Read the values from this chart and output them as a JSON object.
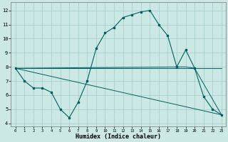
{
  "xlabel": "Humidex (Indice chaleur)",
  "background_color": "#cce8e4",
  "grid_color": "#aacfca",
  "line_color": "#006060",
  "xlim": [
    -0.5,
    23.5
  ],
  "ylim": [
    3.8,
    12.6
  ],
  "yticks": [
    4,
    5,
    6,
    7,
    8,
    9,
    10,
    11,
    12
  ],
  "xticks": [
    0,
    1,
    2,
    3,
    4,
    5,
    6,
    7,
    8,
    9,
    10,
    11,
    12,
    13,
    14,
    15,
    16,
    17,
    18,
    19,
    20,
    21,
    22,
    23
  ],
  "curve_x": [
    0,
    1,
    2,
    3,
    4,
    5,
    6,
    7,
    8,
    9,
    10,
    11,
    12,
    13,
    14,
    15,
    16,
    17,
    18,
    19,
    20,
    21,
    22,
    23
  ],
  "curve_y": [
    7.9,
    7.0,
    6.5,
    6.5,
    6.2,
    5.0,
    4.4,
    5.5,
    7.0,
    9.3,
    10.4,
    10.8,
    11.5,
    11.7,
    11.9,
    12.0,
    11.0,
    10.2,
    8.0,
    9.2,
    7.9,
    5.9,
    5.0,
    4.6
  ],
  "line1_x": [
    0,
    23
  ],
  "line1_y": [
    7.9,
    4.6
  ],
  "line2_x": [
    0,
    19,
    20,
    23
  ],
  "line2_y": [
    7.9,
    8.0,
    7.9,
    4.6
  ],
  "line3_x": [
    0,
    23
  ],
  "line3_y": [
    7.9,
    7.9
  ]
}
